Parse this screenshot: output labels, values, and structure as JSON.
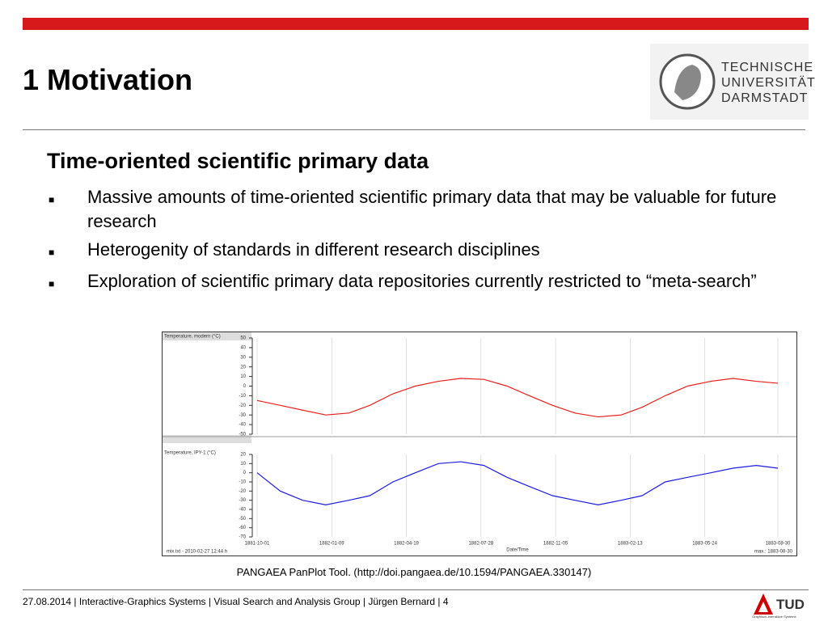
{
  "slide": {
    "title": "1 Motivation",
    "logo_lines": [
      "TECHNISCHE",
      "UNIVERSITÄT",
      "DARMSTADT"
    ],
    "heading": "Time-oriented scientific primary data",
    "bullets": [
      "Massive amounts of time-oriented scientific primary data that may be valuable for future research",
      "Heterogenity of standards in different research disciplines",
      "Exploration of scientific primary data repositories currently restricted to “meta-search”"
    ],
    "caption": "PANGAEA PanPlot Tool. (http://doi.pangaea.de/10.1594/PANGAEA.330147)",
    "footer": "27.08.2014 | Interactive-Graphics Systems | Visual Search and Analysis Group | Jürgen Bernard | 4",
    "footer_logo": "TUD",
    "footer_logo_sub": "Graphisch-Interaktive Systeme"
  },
  "plot_notes": {
    "left": "mix.txt - 2010-02-27 12:44 h",
    "right": "max.: 1883-08-30"
  },
  "chart_data": [
    {
      "type": "line",
      "y_label": "Temperature, modern (°C)",
      "color": "#e8201c",
      "x": [
        "1881-10-01",
        "1881-11-01",
        "1881-12-01",
        "1882-01-01",
        "1882-02-01",
        "1882-03-01",
        "1882-04-01",
        "1882-05-01",
        "1882-06-01",
        "1882-07-01",
        "1882-08-01",
        "1882-09-01",
        "1882-10-01",
        "1882-11-01",
        "1882-12-01",
        "1883-01-01",
        "1883-02-01",
        "1883-03-01",
        "1883-04-01",
        "1883-05-01",
        "1883-06-01",
        "1883-07-01",
        "1883-08-01",
        "1883-08-30"
      ],
      "values": [
        -15,
        -20,
        -25,
        -30,
        -28,
        -20,
        -8,
        0,
        5,
        8,
        7,
        0,
        -10,
        -20,
        -28,
        -32,
        -30,
        -22,
        -10,
        0,
        5,
        8,
        5,
        3
      ],
      "xlim": [
        "1881-10-01",
        "1883-08-30"
      ],
      "ylim": [
        -50,
        50
      ],
      "yticks": [
        50,
        40,
        30,
        20,
        10,
        0,
        -10,
        -20,
        -30,
        -40,
        -50
      ],
      "grid": true
    },
    {
      "type": "line",
      "y_label": "Temperature, IPY-1 (°C)",
      "color": "#1c1ce0",
      "x": [
        "1881-10-01",
        "1881-11-01",
        "1881-12-01",
        "1882-01-01",
        "1882-02-01",
        "1882-03-01",
        "1882-04-01",
        "1882-05-01",
        "1882-06-01",
        "1882-07-01",
        "1882-08-01",
        "1882-09-01",
        "1882-10-01",
        "1882-11-01",
        "1882-12-01",
        "1883-01-01",
        "1883-02-01",
        "1883-03-01",
        "1883-04-01",
        "1883-05-01",
        "1883-06-01",
        "1883-07-01",
        "1883-08-01",
        "1883-08-30"
      ],
      "values": [
        0,
        -20,
        -30,
        -35,
        -30,
        -25,
        -10,
        0,
        10,
        12,
        8,
        -5,
        -15,
        -25,
        -30,
        -35,
        -30,
        -25,
        -10,
        -5,
        0,
        5,
        8,
        5
      ],
      "xlim": [
        "1881-10-01",
        "1883-08-30"
      ],
      "ylim": [
        -70,
        20
      ],
      "yticks": [
        20,
        10,
        0,
        -10,
        -20,
        -30,
        -40,
        -50,
        -60,
        -70
      ],
      "xticks": [
        "1881-10-01",
        "1882-01-09",
        "1882-04-19",
        "1882-07-28",
        "1882-11-05",
        "1883-02-13",
        "1883-05-24",
        "1883-08-30"
      ],
      "x_label": "Date/Time",
      "grid": true
    }
  ]
}
